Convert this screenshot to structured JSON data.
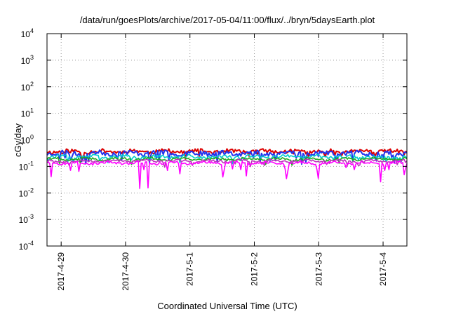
{
  "chart_data": {
    "type": "line",
    "title": "/data/run/goesPlots/archive/2017-05-04/11:00/flux/../bryn/5daysEarth.plot",
    "xlabel": "Coordinated Universal Time (UTC)",
    "ylabel": "cGy/day",
    "yscale": "log",
    "ylim": [
      0.0001,
      10000
    ],
    "y_ticks": [
      {
        "base": "10",
        "exp": "-4"
      },
      {
        "base": "10",
        "exp": "-3"
      },
      {
        "base": "10",
        "exp": "-2"
      },
      {
        "base": "10",
        "exp": "-1"
      },
      {
        "base": "10",
        "exp": "0"
      },
      {
        "base": "10",
        "exp": "1"
      },
      {
        "base": "10",
        "exp": "2"
      },
      {
        "base": "10",
        "exp": "3"
      },
      {
        "base": "10",
        "exp": "4"
      }
    ],
    "x_ticks": [
      "2017-4-29",
      "2017-4-30",
      "2017-5-1",
      "2017-5-2",
      "2017-5-3",
      "2017-5-4"
    ],
    "x_range_days": [
      -0.22,
      5.37
    ],
    "grid": true,
    "legend": "none",
    "series": [
      {
        "color": "#dd0000",
        "base": 0.37,
        "noise": 0.16,
        "dip_depth": 0.45,
        "dip_rate": 0.06,
        "seed": 11
      },
      {
        "color": "#2233ee",
        "base": 0.32,
        "noise": 0.2,
        "dip_depth": 0.55,
        "dip_rate": 0.1,
        "seed": 23
      },
      {
        "color": "#00cccc",
        "base": 0.23,
        "noise": 0.14,
        "dip_depth": 0.45,
        "dip_rate": 0.08,
        "seed": 37
      },
      {
        "color": "#22aa22",
        "base": 0.19,
        "noise": 0.1,
        "dip_depth": 0.4,
        "dip_rate": 0.06,
        "seed": 41
      },
      {
        "color": "#bb33bb",
        "base": 0.16,
        "noise": 0.1,
        "dip_depth": 0.4,
        "dip_rate": 0.06,
        "seed": 53
      },
      {
        "color": "#ff00ff",
        "base": 0.135,
        "noise": 0.1,
        "dip_depth": 0.9,
        "dip_rate": 0.05,
        "seed": 67
      }
    ],
    "spikes_magenta": [
      {
        "x": 0.27,
        "y": 0.065
      },
      {
        "x": 1.29,
        "y": 0.075
      },
      {
        "x": 1.65,
        "y": 0.07
      },
      {
        "x": 2.53,
        "y": 0.075
      },
      {
        "x": 2.67,
        "y": 0.08
      },
      {
        "x": 2.78,
        "y": 0.075
      },
      {
        "x": 3.48,
        "y": 0.08
      },
      {
        "x": 4.0,
        "y": 0.035
      },
      {
        "x": 4.42,
        "y": 0.09
      },
      {
        "x": 5.02,
        "y": 0.07
      },
      {
        "x": 5.1,
        "y": 0.075
      }
    ]
  }
}
